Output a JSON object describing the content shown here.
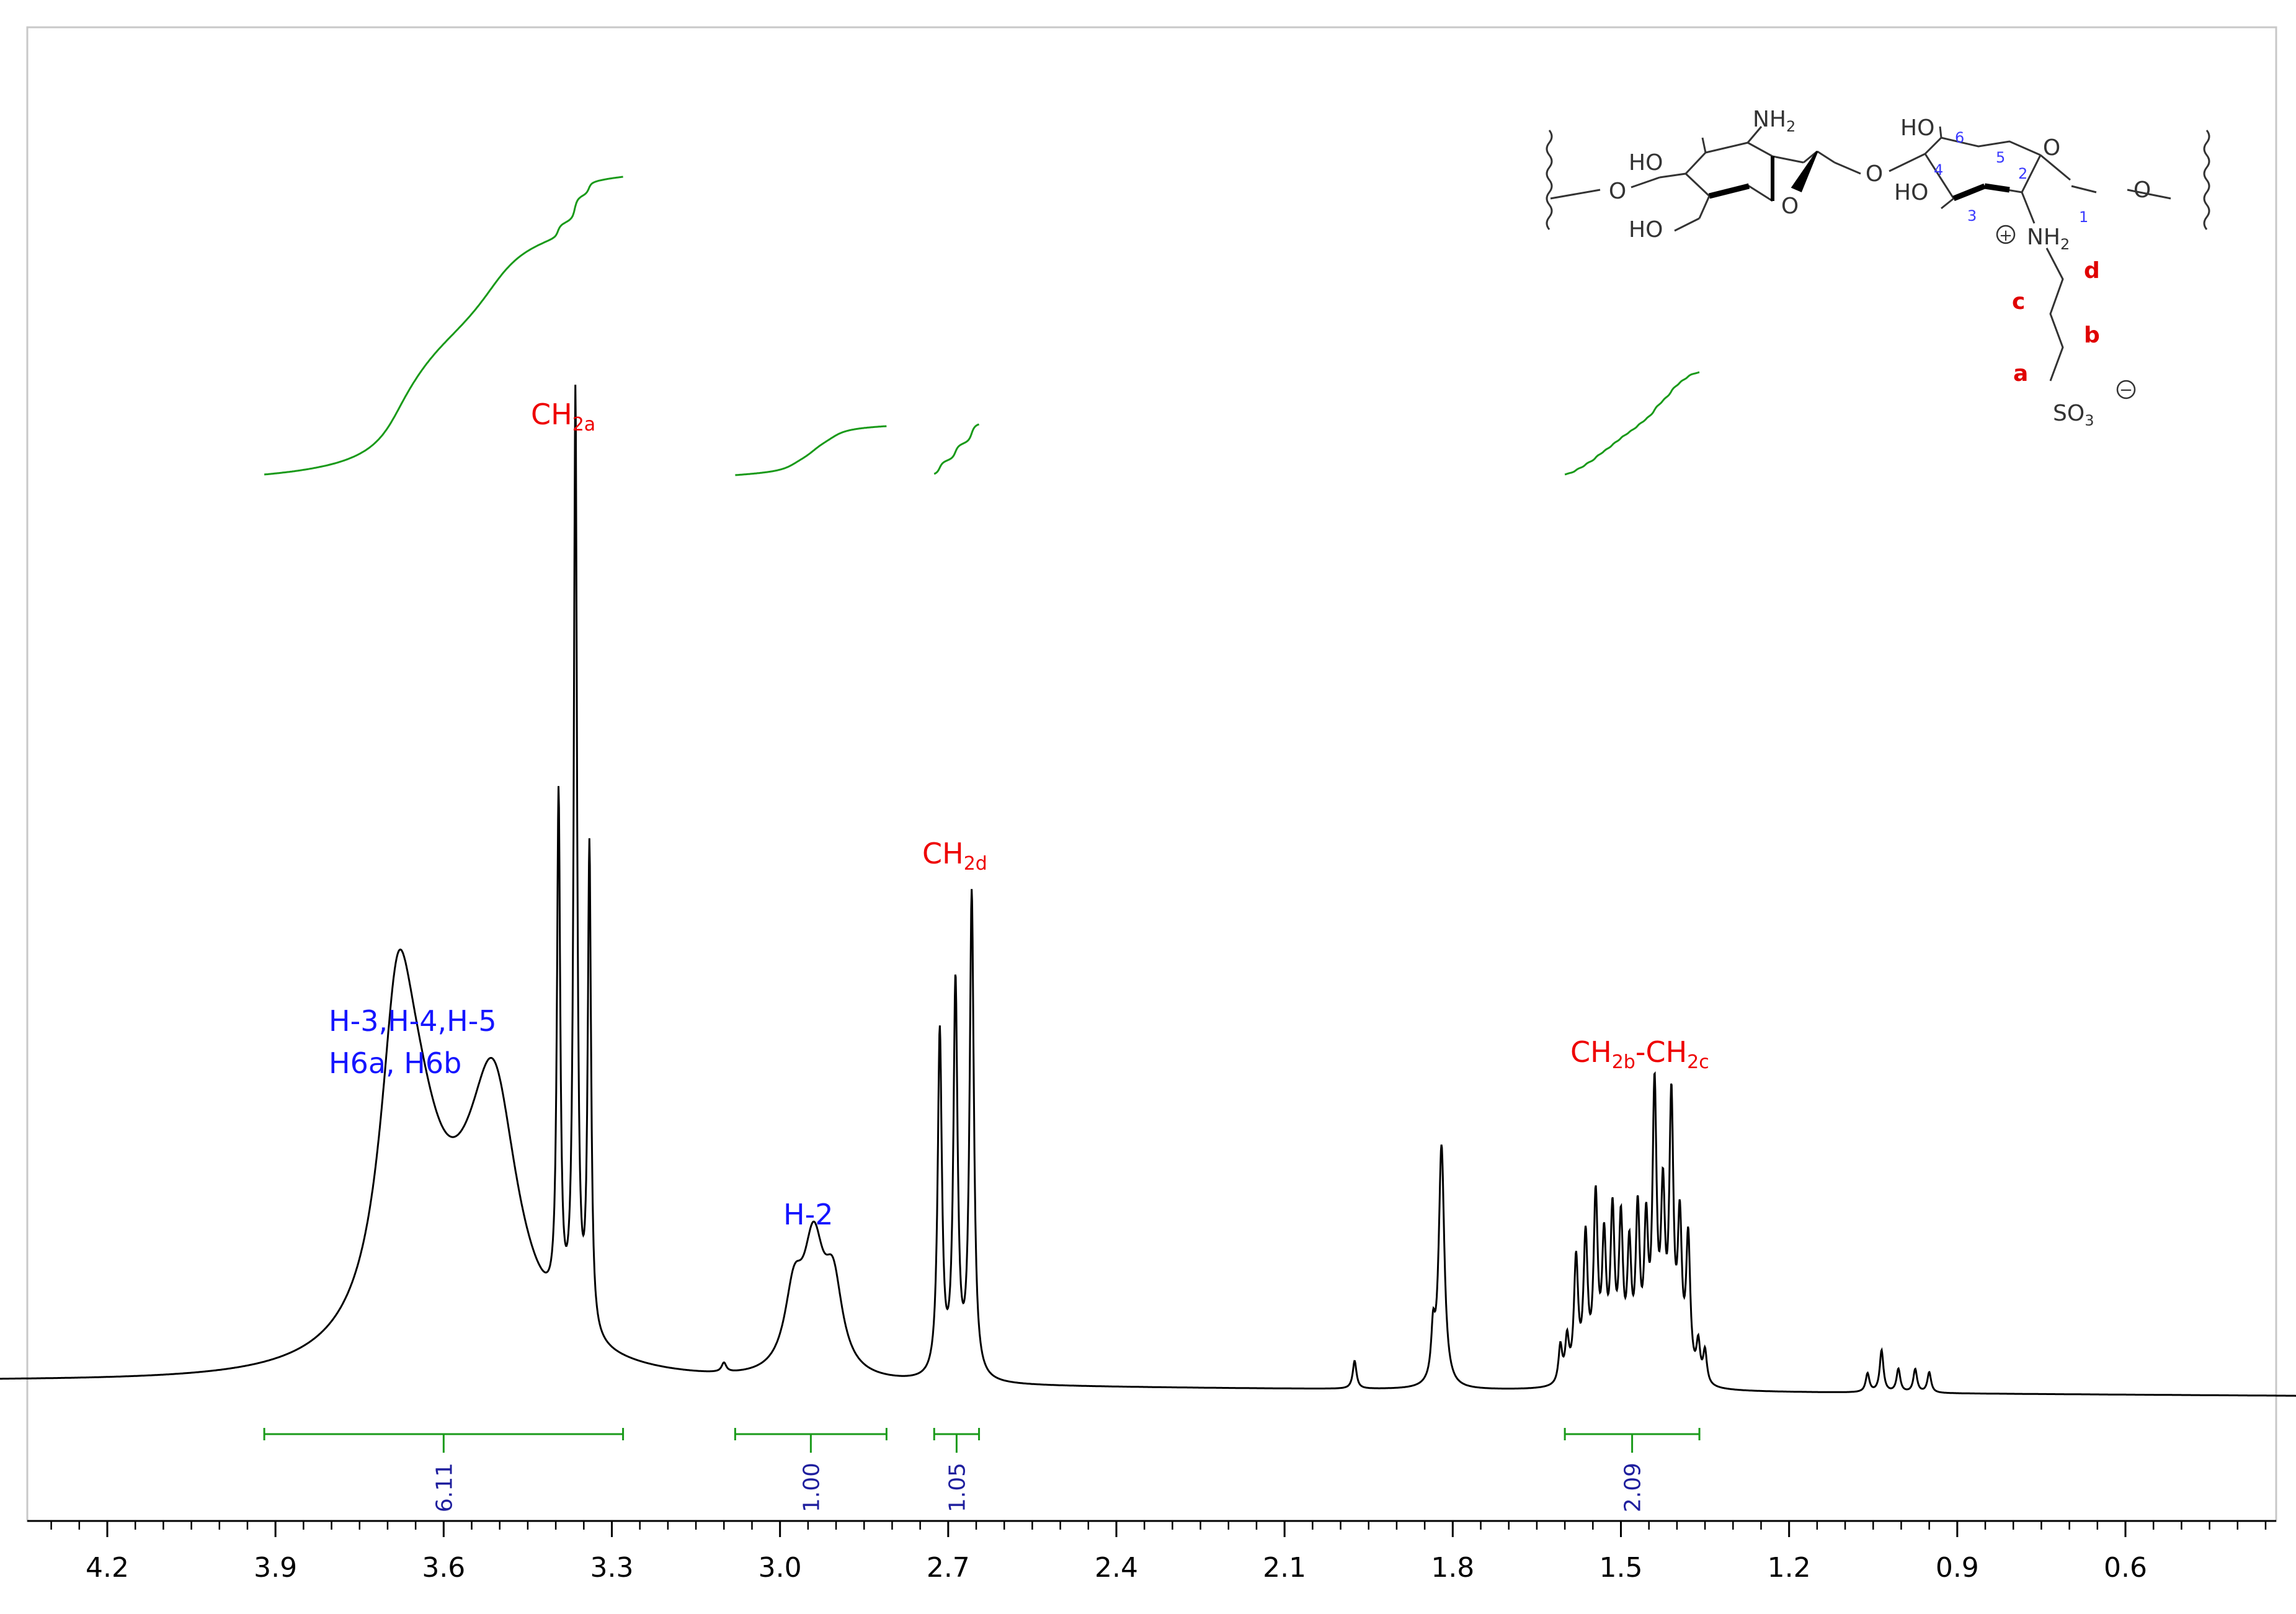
{
  "chart_data": {
    "type": "line",
    "title": "",
    "xlabel": "",
    "ylabel": "",
    "xlim": [
      4.42,
      0.08
    ],
    "x_reversed": true,
    "grid": false,
    "tick_labels": [
      "4.2",
      "3.9",
      "3.6",
      "3.3",
      "3.0",
      "2.7",
      "2.4",
      "2.1",
      "1.8",
      "1.5",
      "1.2",
      "0.9",
      "0.6"
    ],
    "tick_values": [
      4.2,
      3.9,
      3.6,
      3.3,
      3.0,
      2.7,
      2.4,
      2.1,
      1.8,
      1.5,
      1.2,
      0.9,
      0.6
    ],
    "peaks": [
      {
        "ppm": 3.683,
        "height": 0.27,
        "width": 0.035
      },
      {
        "ppm": 3.65,
        "height": 0.18,
        "width": 0.06
      },
      {
        "ppm": 3.51,
        "height": 0.23,
        "width": 0.05
      },
      {
        "ppm": 3.55,
        "height": 0.08,
        "width": 0.09
      },
      {
        "ppm": 3.395,
        "height": 0.55,
        "width": 0.0035
      },
      {
        "ppm": 3.365,
        "height": 1.0,
        "width": 0.0035
      },
      {
        "ppm": 3.34,
        "height": 0.52,
        "width": 0.0035
      },
      {
        "ppm": 3.1,
        "height": 0.01,
        "width": 0.005
      },
      {
        "ppm": 2.975,
        "height": 0.08,
        "width": 0.02
      },
      {
        "ppm": 2.94,
        "height": 0.13,
        "width": 0.022
      },
      {
        "ppm": 2.905,
        "height": 0.09,
        "width": 0.02
      },
      {
        "ppm": 2.715,
        "height": 0.37,
        "width": 0.0045
      },
      {
        "ppm": 2.687,
        "height": 0.42,
        "width": 0.0045
      },
      {
        "ppm": 2.658,
        "height": 0.52,
        "width": 0.0045
      },
      {
        "ppm": 1.975,
        "height": 0.03,
        "width": 0.004
      },
      {
        "ppm": 1.835,
        "height": 0.05,
        "width": 0.004
      },
      {
        "ppm": 1.82,
        "height": 0.26,
        "width": 0.006
      },
      {
        "ppm": 1.608,
        "height": 0.04,
        "width": 0.004
      },
      {
        "ppm": 1.596,
        "height": 0.045,
        "width": 0.004
      },
      {
        "ppm": 1.58,
        "height": 0.13,
        "width": 0.0045
      },
      {
        "ppm": 1.563,
        "height": 0.15,
        "width": 0.0045
      },
      {
        "ppm": 1.545,
        "height": 0.19,
        "width": 0.0045
      },
      {
        "ppm": 1.53,
        "height": 0.14,
        "width": 0.0045
      },
      {
        "ppm": 1.515,
        "height": 0.17,
        "width": 0.0045
      },
      {
        "ppm": 1.5,
        "height": 0.16,
        "width": 0.0045
      },
      {
        "ppm": 1.485,
        "height": 0.13,
        "width": 0.0045
      },
      {
        "ppm": 1.47,
        "height": 0.17,
        "width": 0.0045
      },
      {
        "ppm": 1.455,
        "height": 0.15,
        "width": 0.0045
      },
      {
        "ppm": 1.44,
        "height": 0.3,
        "width": 0.0045
      },
      {
        "ppm": 1.425,
        "height": 0.18,
        "width": 0.0045
      },
      {
        "ppm": 1.41,
        "height": 0.29,
        "width": 0.0045
      },
      {
        "ppm": 1.395,
        "height": 0.16,
        "width": 0.0045
      },
      {
        "ppm": 1.38,
        "height": 0.15,
        "width": 0.0045
      },
      {
        "ppm": 1.362,
        "height": 0.04,
        "width": 0.004
      },
      {
        "ppm": 1.35,
        "height": 0.035,
        "width": 0.004
      },
      {
        "ppm": 1.06,
        "height": 0.02,
        "width": 0.004
      },
      {
        "ppm": 1.035,
        "height": 0.045,
        "width": 0.004
      },
      {
        "ppm": 1.005,
        "height": 0.025,
        "width": 0.004
      },
      {
        "ppm": 0.975,
        "height": 0.025,
        "width": 0.004
      },
      {
        "ppm": 0.95,
        "height": 0.022,
        "width": 0.004
      }
    ],
    "integrals": [
      {
        "from": 3.92,
        "to": 3.28,
        "value": "6.11"
      },
      {
        "from": 3.08,
        "to": 2.81,
        "value": "1.00"
      },
      {
        "from": 2.725,
        "to": 2.645,
        "value": "1.05"
      },
      {
        "from": 1.6,
        "to": 1.36,
        "value": "2.09"
      }
    ],
    "annotations": [
      {
        "id": "h345",
        "lines": [
          "H-3,H-4,H-5",
          "H6a, H6b"
        ],
        "color": "#1515ff"
      },
      {
        "id": "ch2a",
        "main": "CH",
        "sub": "2a",
        "color": "#ee0000"
      },
      {
        "id": "h2",
        "lines": [
          "H-2"
        ],
        "color": "#1515ff"
      },
      {
        "id": "ch2d",
        "main": "CH",
        "sub": "2d",
        "color": "#ee0000"
      },
      {
        "id": "ch2bc",
        "main": "CH",
        "sub": "2b",
        "main2": "-CH",
        "sub2": "2c",
        "color": "#ee0000"
      }
    ]
  },
  "molecule": {
    "labels": {
      "nh2_top": "NH",
      "ho_1": "HO",
      "ho_2": "HO",
      "ho_3": "HO",
      "ho_4": "HO",
      "o_ring1": "O",
      "o_ring2": "O",
      "o_link": "O",
      "o_left": "O",
      "o_right": "O",
      "nh2_pos": "NH",
      "so3": "SO",
      "sub2": "2",
      "sub3": "3",
      "plus": "+",
      "minus": "−"
    },
    "ring_numbers": [
      "6",
      "5",
      "4",
      "3",
      "2",
      "1"
    ],
    "chain_letters": [
      "d",
      "c",
      "b",
      "a"
    ]
  }
}
